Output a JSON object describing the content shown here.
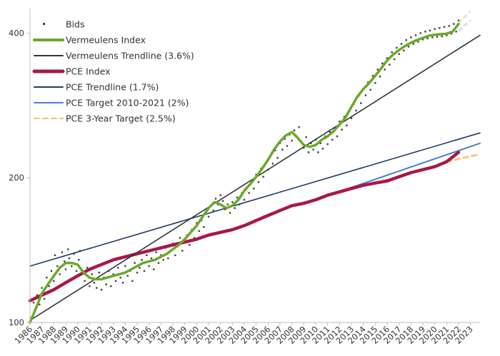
{
  "chart_data": {
    "type": "line",
    "title": "",
    "xlabel": "",
    "ylabel": "",
    "y_scale": "log",
    "ylim": [
      100,
      450
    ],
    "xlim": [
      1986,
      2023.8
    ],
    "grid": false,
    "legend_position": "top-left",
    "y_ticks": [
      {
        "value": 100,
        "label": "100"
      },
      {
        "value": 200,
        "label": "200"
      },
      {
        "value": 400,
        "label": "400"
      }
    ],
    "x_ticks": [
      "1986",
      "1987",
      "1988",
      "1989",
      "1990",
      "1991",
      "1992",
      "1993",
      "1994",
      "1995",
      "1996",
      "1997",
      "1998",
      "1999",
      "2000",
      "2001",
      "2002",
      "2003",
      "2004",
      "2005",
      "2006",
      "2007",
      "2008",
      "2009",
      "2010",
      "2011",
      "2012",
      "2013",
      "2014",
      "2015",
      "2016",
      "2017",
      "2018",
      "2019",
      "2020",
      "2021",
      "2022",
      "2023"
    ],
    "colors": {
      "bids": "#404040",
      "vermeulens_index": "#6aaa2a",
      "vermeulens_trend": "#2b3640",
      "pce_index": "#a8184a",
      "pce_trend": "#243a6a",
      "pce_target": "#4a7fd0",
      "pce_3yr": "#f5c06a",
      "axis": "#bfbfbf"
    },
    "legend": [
      {
        "key": "bids",
        "label": "Bids",
        "style": "marker"
      },
      {
        "key": "vermeulens_index",
        "label": "Vermeulens Index",
        "style": "thick"
      },
      {
        "key": "vermeulens_trend",
        "label": "Vermeulens Trendline (3.6%)",
        "style": "line"
      },
      {
        "key": "pce_index",
        "label": "PCE Index",
        "style": "thick"
      },
      {
        "key": "pce_trend",
        "label": "PCE Trendline (1.7%)",
        "style": "line"
      },
      {
        "key": "pce_target",
        "label": "PCE Target 2010-2021 (2%)",
        "style": "line"
      },
      {
        "key": "pce_3yr",
        "label": "PCE 3-Year Target (2.5%)",
        "style": "dashed"
      }
    ],
    "series": [
      {
        "name": "Vermeulens Index",
        "key": "vermeulens_index",
        "x": [
          1986.0,
          1986.5,
          1987.0,
          1987.5,
          1988.0,
          1988.5,
          1989.0,
          1989.5,
          1990.0,
          1990.5,
          1991.0,
          1991.5,
          1992.0,
          1992.5,
          1993.0,
          1993.5,
          1994.0,
          1994.5,
          1995.0,
          1995.5,
          1996.0,
          1996.5,
          1997.0,
          1997.5,
          1998.0,
          1998.5,
          1999.0,
          1999.5,
          2000.0,
          2000.5,
          2001.0,
          2001.5,
          2002.0,
          2002.5,
          2003.0,
          2003.5,
          2004.0,
          2004.5,
          2005.0,
          2005.5,
          2006.0,
          2006.5,
          2007.0,
          2007.5,
          2008.0,
          2008.5,
          2009.0,
          2009.5,
          2010.0,
          2010.5,
          2011.0,
          2011.5,
          2012.0,
          2012.5,
          2013.0,
          2013.5,
          2014.0,
          2014.5,
          2015.0,
          2015.5,
          2016.0,
          2016.5,
          2017.0,
          2017.5,
          2018.0,
          2018.5,
          2019.0,
          2019.5,
          2020.0,
          2020.5,
          2021.0,
          2021.5,
          2022.0
        ],
        "values": [
          100,
          107,
          115,
          120,
          125,
          130,
          133,
          133,
          132,
          127,
          124,
          123,
          123,
          124,
          125,
          126,
          127,
          129,
          131,
          133,
          134,
          135,
          137,
          139,
          142,
          145,
          149,
          154,
          159,
          166,
          173,
          178,
          176,
          173,
          175,
          180,
          188,
          194,
          201,
          209,
          218,
          229,
          238,
          245,
          249,
          242,
          234,
          232,
          234,
          240,
          244,
          250,
          258,
          267,
          281,
          295,
          306,
          315,
          326,
          338,
          351,
          361,
          369,
          376,
          382,
          387,
          391,
          395,
          397,
          398,
          399,
          403,
          418
        ]
      },
      {
        "name": "PCE Index",
        "key": "pce_index",
        "x": [
          1986,
          1987,
          1988,
          1989,
          1990,
          1991,
          1992,
          1993,
          1994,
          1995,
          1996,
          1997,
          1998,
          1999,
          2000,
          2001,
          2002,
          2003,
          2004,
          2005,
          2006,
          2007,
          2008,
          2009,
          2010,
          2011,
          2012,
          2013,
          2014,
          2015,
          2016,
          2017,
          2018,
          2019,
          2020,
          2021,
          2022
        ],
        "values": [
          111,
          114,
          117,
          121,
          125,
          129,
          132,
          135,
          137,
          139,
          141,
          143,
          145,
          147,
          149,
          152,
          154,
          156,
          159,
          163,
          167,
          171,
          175,
          177,
          180,
          184,
          187,
          190,
          193,
          195,
          197,
          201,
          205,
          208,
          211,
          216,
          226
        ]
      },
      {
        "name": "Vermeulens Trendline (3.6%)",
        "key": "vermeulens_trend",
        "x": [
          1986,
          2023.8
        ],
        "values": [
          101,
          396
        ]
      },
      {
        "name": "PCE Trendline (1.7%)",
        "key": "pce_trend",
        "x": [
          1986,
          2023.8
        ],
        "values": [
          131,
          248
        ]
      },
      {
        "name": "PCE Target 2010-2021 (2%)",
        "key": "pce_target",
        "x": [
          2010,
          2023.8
        ],
        "values": [
          180,
          236
        ]
      },
      {
        "name": "PCE 3-Year Target (2.5%)",
        "key": "pce_3yr",
        "x": [
          2021,
          2023.8
        ],
        "values": [
          216,
          224
        ]
      }
    ],
    "extra_marks": [
      {
        "key": "faded_light_green",
        "x": [
          2022.0,
          2023.0
        ],
        "values": [
          420,
          445
        ]
      },
      {
        "key": "faded_light_blue",
        "x": [
          2022.0,
          2023.0
        ],
        "values": [
          405,
          425
        ]
      }
    ],
    "scatter_points_description": "",
    "bids": {
      "name": "Bids",
      "points": [
        [
          1986.1,
          102
        ],
        [
          1986.3,
          110
        ],
        [
          1986.4,
          106
        ],
        [
          1986.6,
          114
        ],
        [
          1986.8,
          109
        ],
        [
          1987.0,
          118
        ],
        [
          1987.2,
          112
        ],
        [
          1987.4,
          124
        ],
        [
          1987.6,
          119
        ],
        [
          1987.8,
          128
        ],
        [
          1988.0,
          122
        ],
        [
          1988.1,
          138
        ],
        [
          1988.3,
          131
        ],
        [
          1988.5,
          126
        ],
        [
          1988.7,
          140
        ],
        [
          1988.9,
          134
        ],
        [
          1989.0,
          129
        ],
        [
          1989.2,
          142
        ],
        [
          1989.3,
          136
        ],
        [
          1989.5,
          131
        ],
        [
          1989.7,
          139
        ],
        [
          1989.9,
          128
        ],
        [
          1990.1,
          135
        ],
        [
          1990.2,
          141
        ],
        [
          1990.4,
          127
        ],
        [
          1990.6,
          122
        ],
        [
          1990.8,
          130
        ],
        [
          1991.0,
          119
        ],
        [
          1991.2,
          126
        ],
        [
          1991.4,
          121
        ],
        [
          1991.6,
          118
        ],
        [
          1991.8,
          127
        ],
        [
          1992.0,
          117
        ],
        [
          1992.2,
          124
        ],
        [
          1992.4,
          120
        ],
        [
          1992.6,
          128
        ],
        [
          1992.8,
          119
        ],
        [
          1993.0,
          126
        ],
        [
          1993.2,
          122
        ],
        [
          1993.4,
          130
        ],
        [
          1993.6,
          124
        ],
        [
          1993.8,
          121
        ],
        [
          1994.0,
          131
        ],
        [
          1994.2,
          125
        ],
        [
          1994.4,
          128
        ],
        [
          1994.6,
          122
        ],
        [
          1994.8,
          133
        ],
        [
          1995.0,
          127
        ],
        [
          1995.2,
          130
        ],
        [
          1995.4,
          135
        ],
        [
          1995.6,
          128
        ],
        [
          1995.8,
          138
        ],
        [
          1996.0,
          131
        ],
        [
          1996.2,
          136
        ],
        [
          1996.4,
          129
        ],
        [
          1996.6,
          140
        ],
        [
          1996.8,
          133
        ],
        [
          1997.0,
          138
        ],
        [
          1997.2,
          135
        ],
        [
          1997.4,
          143
        ],
        [
          1997.6,
          136
        ],
        [
          1997.8,
          141
        ],
        [
          1998.0,
          146
        ],
        [
          1998.2,
          138
        ],
        [
          1998.4,
          144
        ],
        [
          1998.6,
          150
        ],
        [
          1998.8,
          141
        ],
        [
          1999.0,
          148
        ],
        [
          1999.2,
          152
        ],
        [
          1999.4,
          145
        ],
        [
          1999.6,
          156
        ],
        [
          1999.8,
          150
        ],
        [
          2000.0,
          161
        ],
        [
          2000.2,
          155
        ],
        [
          2000.4,
          163
        ],
        [
          2000.6,
          158
        ],
        [
          2000.8,
          170
        ],
        [
          2001.0,
          166
        ],
        [
          2001.2,
          175
        ],
        [
          2001.4,
          171
        ],
        [
          2001.6,
          181
        ],
        [
          2001.8,
          176
        ],
        [
          2002.0,
          184
        ],
        [
          2002.2,
          179
        ],
        [
          2002.4,
          172
        ],
        [
          2002.6,
          176
        ],
        [
          2002.8,
          169
        ],
        [
          2003.0,
          178
        ],
        [
          2003.2,
          173
        ],
        [
          2003.4,
          182
        ],
        [
          2003.6,
          176
        ],
        [
          2003.8,
          186
        ],
        [
          2004.0,
          180
        ],
        [
          2004.2,
          191
        ],
        [
          2004.4,
          186
        ],
        [
          2004.6,
          197
        ],
        [
          2004.8,
          190
        ],
        [
          2005.0,
          203
        ],
        [
          2005.2,
          196
        ],
        [
          2005.4,
          209
        ],
        [
          2005.6,
          201
        ],
        [
          2005.8,
          214
        ],
        [
          2006.0,
          208
        ],
        [
          2006.2,
          222
        ],
        [
          2006.4,
          214
        ],
        [
          2006.6,
          228
        ],
        [
          2006.8,
          220
        ],
        [
          2007.0,
          236
        ],
        [
          2007.2,
          229
        ],
        [
          2007.4,
          241
        ],
        [
          2007.6,
          233
        ],
        [
          2007.8,
          246
        ],
        [
          2008.0,
          239
        ],
        [
          2008.2,
          251
        ],
        [
          2008.4,
          244
        ],
        [
          2008.6,
          255
        ],
        [
          2008.8,
          238
        ],
        [
          2009.0,
          231
        ],
        [
          2009.2,
          243
        ],
        [
          2009.4,
          226
        ],
        [
          2009.6,
          236
        ],
        [
          2009.8,
          229
        ],
        [
          2010.0,
          240
        ],
        [
          2010.2,
          226
        ],
        [
          2010.4,
          236
        ],
        [
          2010.6,
          230
        ],
        [
          2010.8,
          244
        ],
        [
          2011.0,
          235
        ],
        [
          2011.2,
          249
        ],
        [
          2011.4,
          240
        ],
        [
          2011.6,
          254
        ],
        [
          2011.8,
          244
        ],
        [
          2012.0,
          262
        ],
        [
          2012.2,
          252
        ],
        [
          2012.4,
          268
        ],
        [
          2012.6,
          257
        ],
        [
          2012.8,
          275
        ],
        [
          2013.0,
          266
        ],
        [
          2013.2,
          285
        ],
        [
          2013.4,
          276
        ],
        [
          2013.6,
          296
        ],
        [
          2013.8,
          286
        ],
        [
          2014.0,
          306
        ],
        [
          2014.2,
          297
        ],
        [
          2014.4,
          316
        ],
        [
          2014.6,
          305
        ],
        [
          2014.8,
          326
        ],
        [
          2015.0,
          315
        ],
        [
          2015.2,
          336
        ],
        [
          2015.4,
          325
        ],
        [
          2015.6,
          346
        ],
        [
          2015.8,
          336
        ],
        [
          2016.0,
          355
        ],
        [
          2016.2,
          344
        ],
        [
          2016.4,
          365
        ],
        [
          2016.6,
          353
        ],
        [
          2016.8,
          373
        ],
        [
          2017.0,
          362
        ],
        [
          2017.2,
          380
        ],
        [
          2017.4,
          368
        ],
        [
          2017.6,
          387
        ],
        [
          2017.8,
          375
        ],
        [
          2018.0,
          392
        ],
        [
          2018.2,
          380
        ],
        [
          2018.4,
          396
        ],
        [
          2018.6,
          384
        ],
        [
          2018.8,
          400
        ],
        [
          2019.0,
          388
        ],
        [
          2019.2,
          403
        ],
        [
          2019.4,
          390
        ],
        [
          2019.6,
          405
        ],
        [
          2019.8,
          392
        ],
        [
          2020.0,
          408
        ],
        [
          2020.2,
          393
        ],
        [
          2020.4,
          410
        ],
        [
          2020.6,
          394
        ],
        [
          2020.8,
          412
        ],
        [
          2021.0,
          396
        ],
        [
          2021.2,
          414
        ],
        [
          2021.4,
          399
        ],
        [
          2021.6,
          418
        ],
        [
          2021.8,
          403
        ],
        [
          2022.0,
          425
        ]
      ]
    }
  }
}
